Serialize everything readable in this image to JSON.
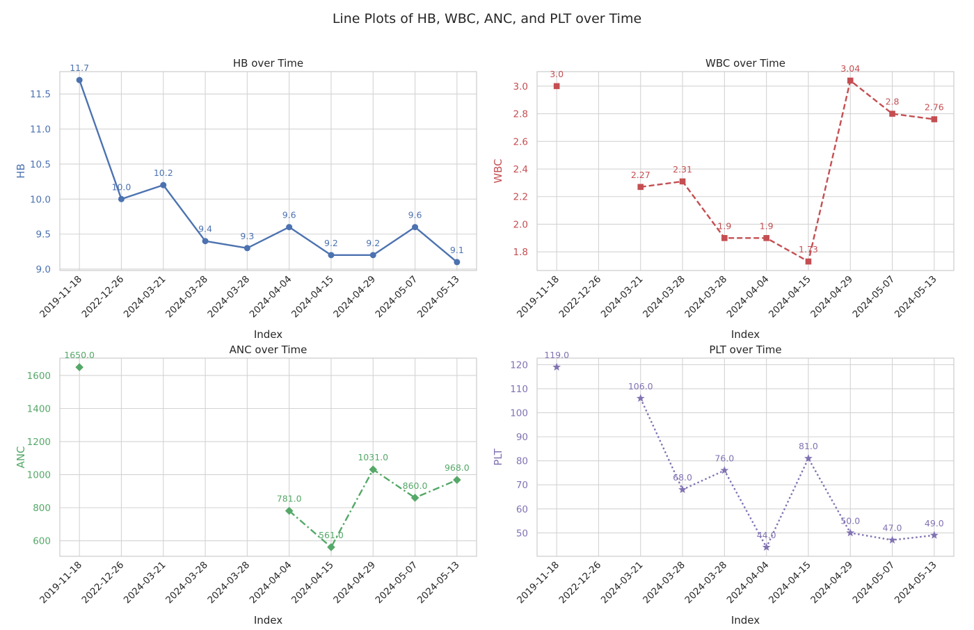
{
  "figure": {
    "title": "Line Plots of HB, WBC, ANC, and PLT over Time"
  },
  "chart_data": [
    {
      "type": "line",
      "title": "HB over Time",
      "xlabel": "Index",
      "ylabel": "HB",
      "categories": [
        "2019-11-18",
        "2022-12-26",
        "2024-03-21",
        "2024-03-28",
        "2024-03-28",
        "2024-04-04",
        "2024-04-15",
        "2024-04-29",
        "2024-05-07",
        "2024-05-13"
      ],
      "values": [
        11.7,
        10.0,
        10.2,
        9.4,
        9.3,
        9.6,
        9.2,
        9.2,
        9.6,
        9.1
      ],
      "labels": [
        "11.7",
        "10.0",
        "10.2",
        "9.4",
        "9.3",
        "9.6",
        "9.2",
        "9.2",
        "9.6",
        "9.1"
      ],
      "ylim": [
        8.98,
        11.82
      ],
      "yticks": [
        9.0,
        9.5,
        10.0,
        10.5,
        11.0,
        11.5
      ],
      "ytick_labels": [
        "9.0",
        "9.5",
        "10.0",
        "10.5",
        "11.0",
        "11.5"
      ],
      "color": "#4c72b0",
      "marker": "circle",
      "linestyle": "solid"
    },
    {
      "type": "line",
      "title": "WBC over Time",
      "xlabel": "Index",
      "ylabel": "WBC",
      "categories": [
        "2019-11-18",
        "2022-12-26",
        "2024-03-21",
        "2024-03-28",
        "2024-03-28",
        "2024-04-04",
        "2024-04-15",
        "2024-04-29",
        "2024-05-07",
        "2024-05-13"
      ],
      "values": [
        3.0,
        null,
        2.27,
        2.31,
        1.9,
        1.9,
        1.73,
        3.04,
        2.8,
        2.76
      ],
      "labels": [
        "3.0",
        "",
        "2.27",
        "2.31",
        "1.9",
        "1.9",
        "1.73",
        "3.04",
        "2.8",
        "2.76"
      ],
      "ylim": [
        1.665,
        3.105
      ],
      "yticks": [
        1.8,
        2.0,
        2.2,
        2.4,
        2.6,
        2.8,
        3.0
      ],
      "ytick_labels": [
        "1.8",
        "2.0",
        "2.2",
        "2.4",
        "2.6",
        "2.8",
        "3.0"
      ],
      "color": "#c44e52",
      "marker": "square",
      "linestyle": "dashed"
    },
    {
      "type": "line",
      "title": "ANC over Time",
      "xlabel": "Index",
      "ylabel": "ANC",
      "categories": [
        "2019-11-18",
        "2022-12-26",
        "2024-03-21",
        "2024-03-28",
        "2024-03-28",
        "2024-04-04",
        "2024-04-15",
        "2024-04-29",
        "2024-05-07",
        "2024-05-13"
      ],
      "values": [
        1650.0,
        null,
        null,
        null,
        null,
        781.0,
        561.0,
        1031.0,
        860.0,
        968.0
      ],
      "labels": [
        "1650.0",
        "",
        "",
        "",
        "",
        "781.0",
        "561.0",
        "1031.0",
        "860.0",
        "968.0"
      ],
      "ylim": [
        506,
        1705
      ],
      "yticks": [
        600,
        800,
        1000,
        1200,
        1400,
        1600
      ],
      "ytick_labels": [
        "600",
        "800",
        "1000",
        "1200",
        "1400",
        "1600"
      ],
      "color": "#55a868",
      "marker": "diamond",
      "linestyle": "dashdot"
    },
    {
      "type": "line",
      "title": "PLT over Time",
      "xlabel": "Index",
      "ylabel": "PLT",
      "categories": [
        "2019-11-18",
        "2022-12-26",
        "2024-03-21",
        "2024-03-28",
        "2024-03-28",
        "2024-04-04",
        "2024-04-15",
        "2024-04-29",
        "2024-05-07",
        "2024-05-13"
      ],
      "values": [
        119.0,
        null,
        106.0,
        68.0,
        76.0,
        44.0,
        81.0,
        50.0,
        47.0,
        49.0
      ],
      "labels": [
        "119.0",
        "",
        "106.0",
        "68.0",
        "76.0",
        "44.0",
        "81.0",
        "50.0",
        "47.0",
        "49.0"
      ],
      "ylim": [
        40.25,
        122.75
      ],
      "yticks": [
        50,
        60,
        70,
        80,
        90,
        100,
        110,
        120
      ],
      "ytick_labels": [
        "50",
        "60",
        "70",
        "80",
        "90",
        "100",
        "110",
        "120"
      ],
      "color": "#8172b2",
      "marker": "star",
      "linestyle": "dotted"
    }
  ]
}
